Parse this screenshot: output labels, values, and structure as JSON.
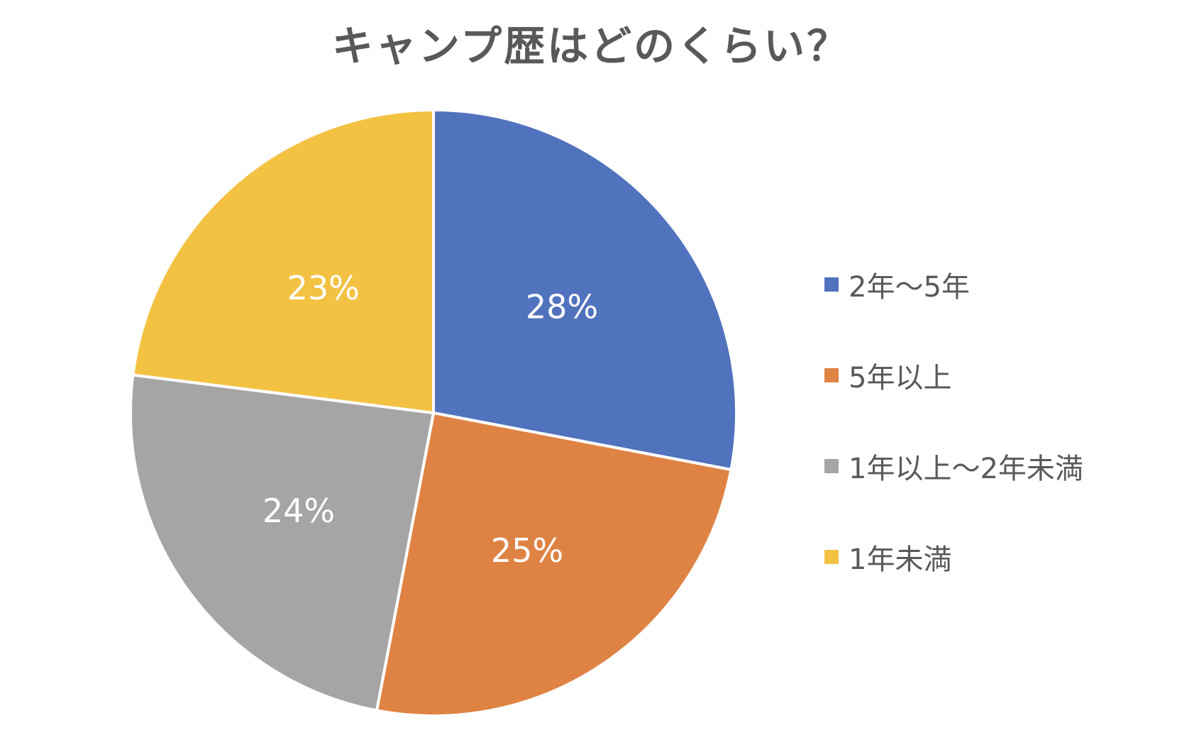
{
  "chart_data": {
    "type": "pie",
    "title": "キャンプ歴はどのくらい？",
    "categories": [
      "2年～5年",
      "5年以上",
      "1年以上～2年未満",
      "1年未満"
    ],
    "values": [
      28,
      25,
      24,
      23
    ],
    "labels": [
      "28%",
      "25%",
      "24%",
      "23%"
    ],
    "colors": [
      "#5172BD",
      "#DF8344",
      "#A5A5A5",
      "#F3C243"
    ],
    "start_angle_deg": 0,
    "direction": "clockwise",
    "legend_position": "right"
  }
}
